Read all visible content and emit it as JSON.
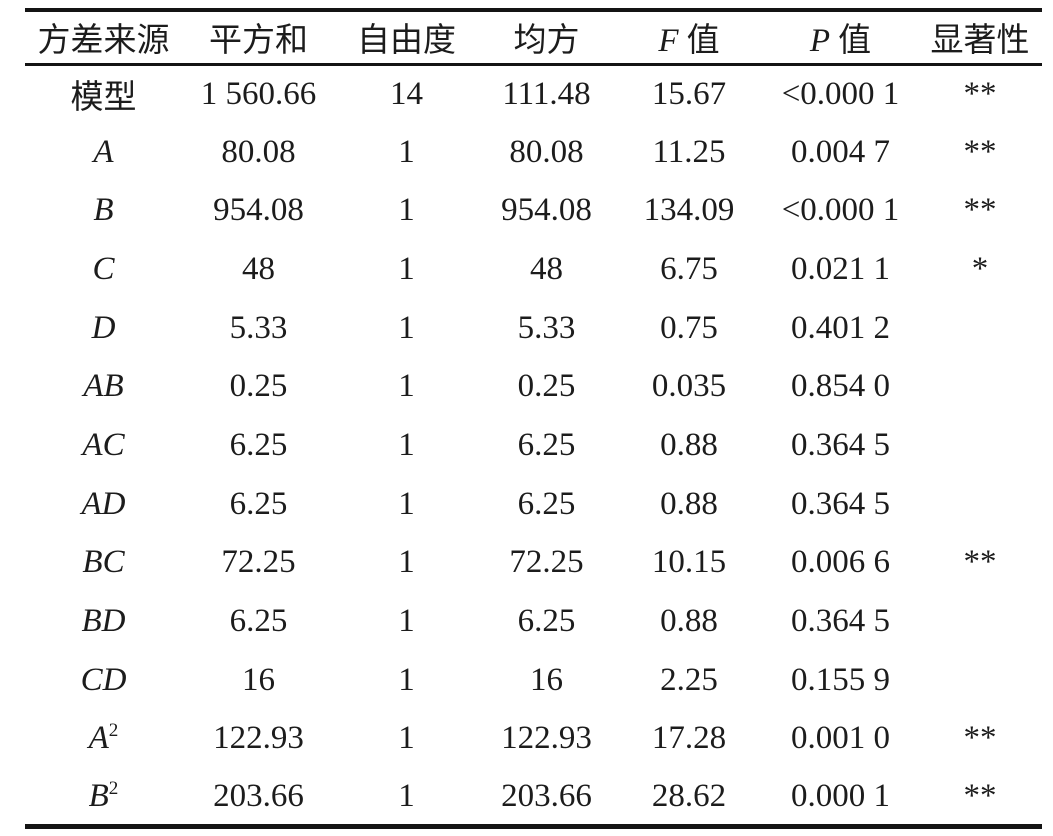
{
  "page": {
    "background": "#ffffff",
    "text_color": "#1c1c1c",
    "rule_color": "#141414"
  },
  "table": {
    "description": "ANOVA variance analysis significance table",
    "columns": [
      {
        "key": "source",
        "italic_prefix": "",
        "label": "方差来源"
      },
      {
        "key": "sum_of_squares",
        "italic_prefix": "",
        "label": "平方和"
      },
      {
        "key": "df",
        "italic_prefix": "",
        "label": "自由度"
      },
      {
        "key": "mean_square",
        "italic_prefix": "",
        "label": "均方"
      },
      {
        "key": "f_value",
        "italic_prefix": "F",
        "label": "值"
      },
      {
        "key": "p_value",
        "italic_prefix": "P",
        "label": "值"
      },
      {
        "key": "significance",
        "italic_prefix": "",
        "label": "显著性"
      }
    ],
    "rows": [
      {
        "source": {
          "text": "模型",
          "sup": "",
          "italic": false
        },
        "sum_of_squares": "1 560.66",
        "df": "14",
        "mean_square": "111.48",
        "f_value": "15.67",
        "p_value": "<0.000 1",
        "significance": "**"
      },
      {
        "source": {
          "text": "A",
          "sup": "",
          "italic": true
        },
        "sum_of_squares": "80.08",
        "df": "1",
        "mean_square": "80.08",
        "f_value": "11.25",
        "p_value": "0.004 7",
        "significance": "**"
      },
      {
        "source": {
          "text": "B",
          "sup": "",
          "italic": true
        },
        "sum_of_squares": "954.08",
        "df": "1",
        "mean_square": "954.08",
        "f_value": "134.09",
        "p_value": "<0.000 1",
        "significance": "**"
      },
      {
        "source": {
          "text": "C",
          "sup": "",
          "italic": true
        },
        "sum_of_squares": "48",
        "df": "1",
        "mean_square": "48",
        "f_value": "6.75",
        "p_value": "0.021 1",
        "significance": "*"
      },
      {
        "source": {
          "text": "D",
          "sup": "",
          "italic": true
        },
        "sum_of_squares": "5.33",
        "df": "1",
        "mean_square": "5.33",
        "f_value": "0.75",
        "p_value": "0.401 2",
        "significance": ""
      },
      {
        "source": {
          "text": "AB",
          "sup": "",
          "italic": true
        },
        "sum_of_squares": "0.25",
        "df": "1",
        "mean_square": "0.25",
        "f_value": "0.035",
        "p_value": "0.854 0",
        "significance": ""
      },
      {
        "source": {
          "text": "AC",
          "sup": "",
          "italic": true
        },
        "sum_of_squares": "6.25",
        "df": "1",
        "mean_square": "6.25",
        "f_value": "0.88",
        "p_value": "0.364 5",
        "significance": ""
      },
      {
        "source": {
          "text": "AD",
          "sup": "",
          "italic": true
        },
        "sum_of_squares": "6.25",
        "df": "1",
        "mean_square": "6.25",
        "f_value": "0.88",
        "p_value": "0.364 5",
        "significance": ""
      },
      {
        "source": {
          "text": "BC",
          "sup": "",
          "italic": true
        },
        "sum_of_squares": "72.25",
        "df": "1",
        "mean_square": "72.25",
        "f_value": "10.15",
        "p_value": "0.006 6",
        "significance": "**"
      },
      {
        "source": {
          "text": "BD",
          "sup": "",
          "italic": true
        },
        "sum_of_squares": "6.25",
        "df": "1",
        "mean_square": "6.25",
        "f_value": "0.88",
        "p_value": "0.364 5",
        "significance": ""
      },
      {
        "source": {
          "text": "CD",
          "sup": "",
          "italic": true
        },
        "sum_of_squares": "16",
        "df": "1",
        "mean_square": "16",
        "f_value": "2.25",
        "p_value": "0.155 9",
        "significance": ""
      },
      {
        "source": {
          "text": "A",
          "sup": "2",
          "italic": true
        },
        "sum_of_squares": "122.93",
        "df": "1",
        "mean_square": "122.93",
        "f_value": "17.28",
        "p_value": "0.001 0",
        "significance": "**"
      },
      {
        "source": {
          "text": "B",
          "sup": "2",
          "italic": true
        },
        "sum_of_squares": "203.66",
        "df": "1",
        "mean_square": "203.66",
        "f_value": "28.62",
        "p_value": "0.000 1",
        "significance": "**"
      }
    ]
  }
}
